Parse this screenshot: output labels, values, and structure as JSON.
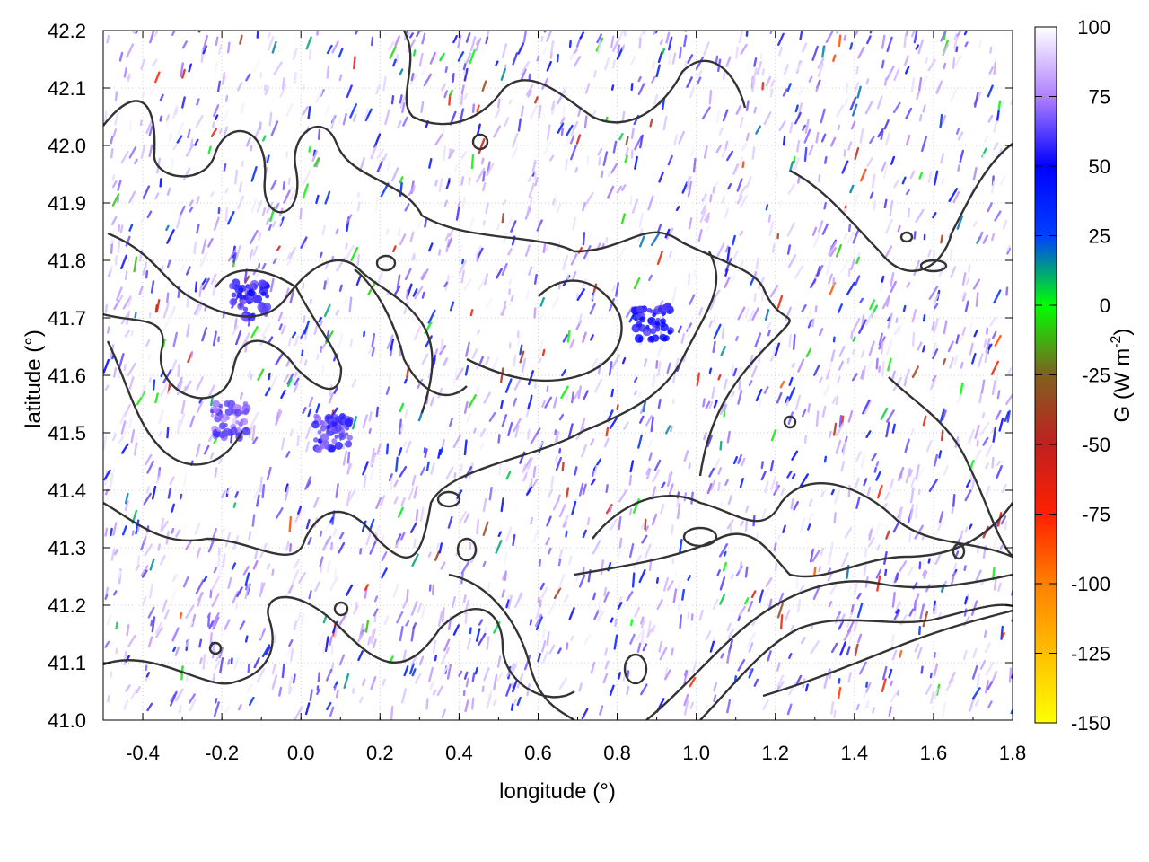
{
  "chart_data": {
    "type": "heatmap",
    "title": "",
    "xlabel": "longitude (°)",
    "ylabel": "latitude (°)",
    "xlim": [
      -0.5,
      1.8
    ],
    "ylim": [
      41.0,
      42.2
    ],
    "xticks": [
      -0.4,
      -0.2,
      0.0,
      0.2,
      0.4,
      0.6,
      0.8,
      1.0,
      1.2,
      1.4,
      1.6,
      1.8
    ],
    "xtick_labels": [
      "-0.4",
      "-0.2",
      "0.0",
      "0.2",
      "0.4",
      "0.6",
      "0.8",
      "1.0",
      "1.2",
      "1.4",
      "1.6",
      "1.8"
    ],
    "yticks": [
      41.0,
      41.1,
      41.2,
      41.3,
      41.4,
      41.5,
      41.6,
      41.7,
      41.8,
      41.9,
      42.0,
      42.1,
      42.2
    ],
    "ytick_labels": [
      "41.0",
      "41.1",
      "41.2",
      "41.3",
      "41.4",
      "41.5",
      "41.6",
      "41.7",
      "41.8",
      "41.9",
      "42.0",
      "42.1",
      "42.2"
    ],
    "grid": true,
    "colorbar": {
      "label_main": "G (W m",
      "label_sup": "-2",
      "label_end": ")",
      "range": [
        -150,
        100
      ],
      "ticks": [
        100,
        75,
        50,
        25,
        0,
        -25,
        -50,
        -75,
        -100,
        -125,
        -150
      ],
      "tick_labels": [
        "100",
        "75",
        "50",
        "25",
        "0",
        "-25",
        "-50",
        "-75",
        "-100",
        "-125",
        "-150"
      ],
      "palette": [
        {
          "value": -150,
          "color": "#ffff00"
        },
        {
          "value": -125,
          "color": "#ffbf00"
        },
        {
          "value": -100,
          "color": "#ff8000"
        },
        {
          "value": -75,
          "color": "#ff2000"
        },
        {
          "value": -50,
          "color": "#c02020"
        },
        {
          "value": -25,
          "color": "#806020"
        },
        {
          "value": 0,
          "color": "#00ff00"
        },
        {
          "value": 25,
          "color": "#0040ff"
        },
        {
          "value": 50,
          "color": "#0000ff"
        },
        {
          "value": 75,
          "color": "#b080ff"
        },
        {
          "value": 100,
          "color": "#ffffff"
        }
      ]
    },
    "features": [
      {
        "name": "purple blob",
        "lon": -0.13,
        "lat": 41.73,
        "value": 60
      },
      {
        "name": "purple blob",
        "lon": 0.89,
        "lat": 41.69,
        "value": 55
      },
      {
        "name": "purple blob",
        "lon": 0.08,
        "lat": 41.5,
        "value": 62
      },
      {
        "name": "purple blob",
        "lon": -0.18,
        "lat": 41.52,
        "value": 68
      }
    ]
  }
}
